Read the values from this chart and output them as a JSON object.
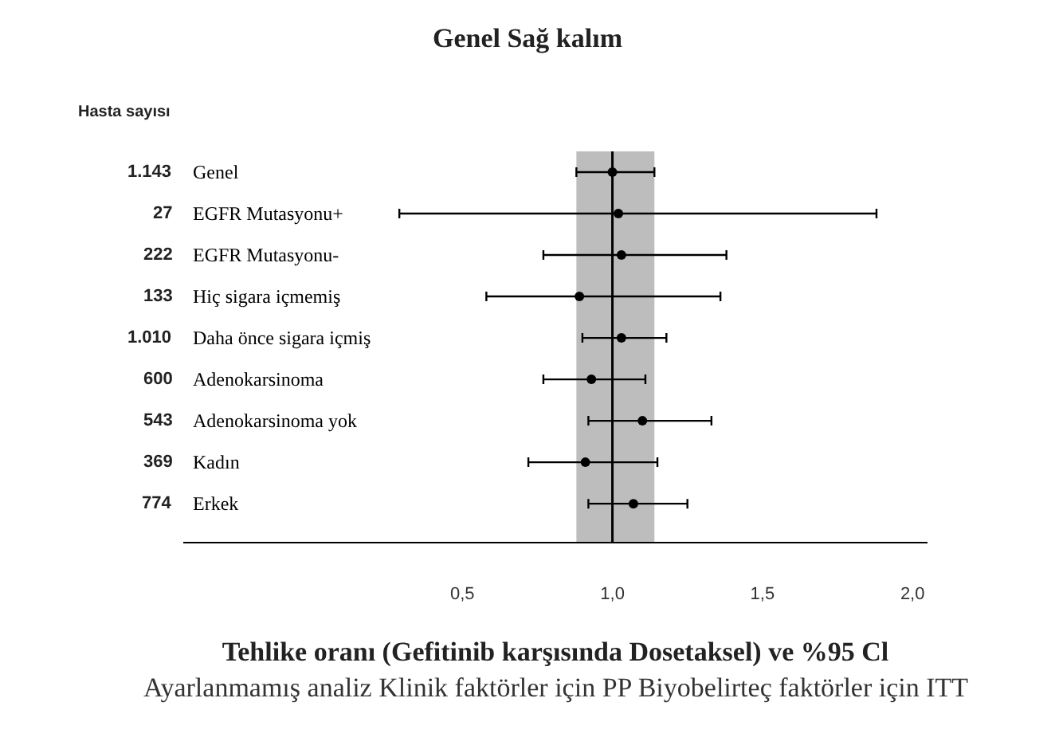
{
  "chart_data": {
    "type": "scatter",
    "orientation": "horizontal",
    "title": "Genel Sağ kalım",
    "xlabel": "Tehlike oranı (Gefitinib karşısında Dosetaksel) ve %95 Cl",
    "categories": [
      "Genel",
      "EGFR Mutasyonu+",
      "EGFR Mutasyonu-",
      "Hiç sigara içmemiş",
      "Daha önce sigara içmiş",
      "Adenokarsinoma",
      "Adenokarsinoma yok",
      "Kadın",
      "Erkek"
    ],
    "values": [
      1.0,
      1.02,
      1.03,
      0.89,
      1.03,
      0.93,
      1.1,
      0.91,
      1.07
    ],
    "errors": [
      [
        0.88,
        1.14
      ],
      [
        0.29,
        1.88
      ],
      [
        0.77,
        1.38
      ],
      [
        0.58,
        1.36
      ],
      [
        0.9,
        1.18
      ],
      [
        0.77,
        1.11
      ],
      [
        0.92,
        1.33
      ],
      [
        0.72,
        1.15
      ],
      [
        0.92,
        1.25
      ]
    ],
    "color": "#000000",
    "marker": "circle",
    "xlim": [
      -0.43,
      2.05
    ],
    "xticks": [
      {
        "value": 0.5,
        "label": "0,5"
      },
      {
        "value": 1.0,
        "label": "1,0"
      },
      {
        "value": 1.5,
        "label": "1,5"
      },
      {
        "value": 2.0,
        "label": "2,0"
      }
    ],
    "bands": [
      {
        "axis": "x",
        "from": 0.88,
        "to": 1.14,
        "color": "#bdbdbd"
      }
    ],
    "ref_lines": [
      {
        "axis": "x",
        "value": 1.0,
        "color": "#000000"
      }
    ],
    "grid": false,
    "legend": false,
    "annotations": [
      "Hasta sayısı",
      "1.143",
      "27",
      "222",
      "133",
      "1.010",
      "600",
      "543",
      "369",
      "774",
      "Ayarlanmamış analiz Klinik faktörler için PP Biyobelirteç faktörler için ITT"
    ]
  }
}
